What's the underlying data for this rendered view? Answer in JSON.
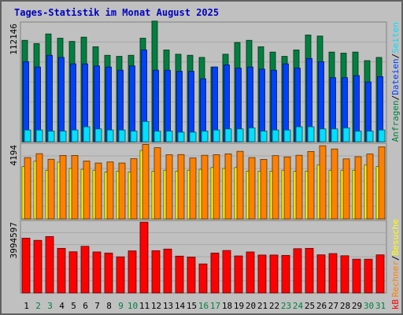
{
  "title": "Tages-Statistik im Monat August 2025",
  "chart_data": [
    {
      "type": "bar",
      "panel": "anfragen-dateien-seiten",
      "ylabel_max": "112146",
      "ylim": [
        0,
        112146
      ],
      "categories": [
        "1",
        "2",
        "3",
        "4",
        "5",
        "6",
        "7",
        "8",
        "9",
        "10",
        "11",
        "12",
        "13",
        "14",
        "15",
        "16",
        "17",
        "18",
        "19",
        "20",
        "21",
        "22",
        "23",
        "24",
        "25",
        "26",
        "27",
        "28",
        "29",
        "30",
        "31"
      ],
      "weekend_days": [
        "2",
        "3",
        "9",
        "10",
        "16",
        "17",
        "23",
        "24",
        "30",
        "31"
      ],
      "series": [
        {
          "name": "Anfragen",
          "color": "#008040",
          "values": [
            95000,
            92000,
            101000,
            97000,
            94000,
            98000,
            89000,
            81000,
            80000,
            81000,
            97000,
            113000,
            86000,
            82000,
            81000,
            79000,
            70000,
            82000,
            93000,
            95000,
            89000,
            84000,
            80000,
            86000,
            100000,
            99000,
            84000,
            83000,
            84000,
            76000,
            79000
          ]
        },
        {
          "name": "Dateien",
          "color": "#0040ff",
          "values": [
            75000,
            70000,
            81000,
            79000,
            73000,
            73000,
            71000,
            70000,
            67000,
            71000,
            86000,
            67000,
            67000,
            66000,
            66000,
            59000,
            70000,
            72000,
            69000,
            70000,
            68000,
            67000,
            73000,
            69000,
            78000,
            75000,
            60000,
            60000,
            62000,
            56000,
            61000
          ]
        },
        {
          "name": "Seiten",
          "color": "#00e0ff",
          "values": [
            11000,
            11000,
            10000,
            10000,
            11000,
            14000,
            12000,
            11000,
            11000,
            10000,
            19000,
            10000,
            10000,
            9000,
            9000,
            10000,
            11000,
            12000,
            12000,
            13000,
            10000,
            11000,
            11000,
            14000,
            14000,
            12000,
            12000,
            13000,
            10000,
            10000,
            11000
          ]
        }
      ],
      "legend": [
        "Anfragen",
        "/",
        "Dateien",
        "/",
        "Seiten"
      ]
    },
    {
      "type": "bar",
      "panel": "besuche-rechner",
      "ylabel_max": "4194",
      "ylim": [
        0,
        4194
      ],
      "categories": [
        "1",
        "2",
        "3",
        "4",
        "5",
        "6",
        "7",
        "8",
        "9",
        "10",
        "11",
        "12",
        "13",
        "14",
        "15",
        "16",
        "17",
        "18",
        "19",
        "20",
        "21",
        "22",
        "23",
        "24",
        "25",
        "26",
        "27",
        "28",
        "29",
        "30",
        "31"
      ],
      "series": [
        {
          "name": "Besuche",
          "color": "#ff8000",
          "values": [
            3400,
            3620,
            3310,
            3520,
            3520,
            3210,
            3100,
            3160,
            3100,
            3340,
            4130,
            3950,
            3560,
            3570,
            3380,
            3530,
            3560,
            3610,
            3750,
            3400,
            3300,
            3510,
            3440,
            3530,
            3740,
            4060,
            3880,
            3330,
            3450,
            3600,
            4000
          ]
        },
        {
          "name": "Rechner",
          "color": "#ffff00",
          "values": [
            2900,
            3200,
            2700,
            3150,
            2800,
            2750,
            2700,
            2600,
            2650,
            2600,
            3800,
            2650,
            2700,
            2650,
            2700,
            2750,
            2850,
            2800,
            2850,
            2650,
            2650,
            2650,
            2700,
            2650,
            2650,
            3000,
            2700,
            2700,
            2700,
            3000,
            2900
          ]
        }
      ],
      "legend": [
        "Rechner",
        "/",
        "Besuche"
      ]
    },
    {
      "type": "bar",
      "panel": "kb",
      "ylabel_max": "3994597",
      "ylim": [
        0,
        3994597
      ],
      "categories": [
        "1",
        "2",
        "3",
        "4",
        "5",
        "6",
        "7",
        "8",
        "9",
        "10",
        "11",
        "12",
        "13",
        "14",
        "15",
        "16",
        "17",
        "18",
        "19",
        "20",
        "21",
        "22",
        "23",
        "24",
        "25",
        "26",
        "27",
        "28",
        "29",
        "30",
        "31"
      ],
      "series": [
        {
          "name": "kB",
          "color": "#ff0000",
          "values": [
            3020000,
            2900000,
            3110000,
            2460000,
            2270000,
            2570000,
            2260000,
            2200000,
            1990000,
            2320000,
            3900000,
            2330000,
            2420000,
            2030000,
            1980000,
            1600000,
            2200000,
            2340000,
            2040000,
            2260000,
            2090000,
            2090000,
            2070000,
            2440000,
            2460000,
            2100000,
            2170000,
            2050000,
            1860000,
            1860000,
            2100000
          ]
        }
      ],
      "legend": [
        "kB"
      ]
    }
  ]
}
